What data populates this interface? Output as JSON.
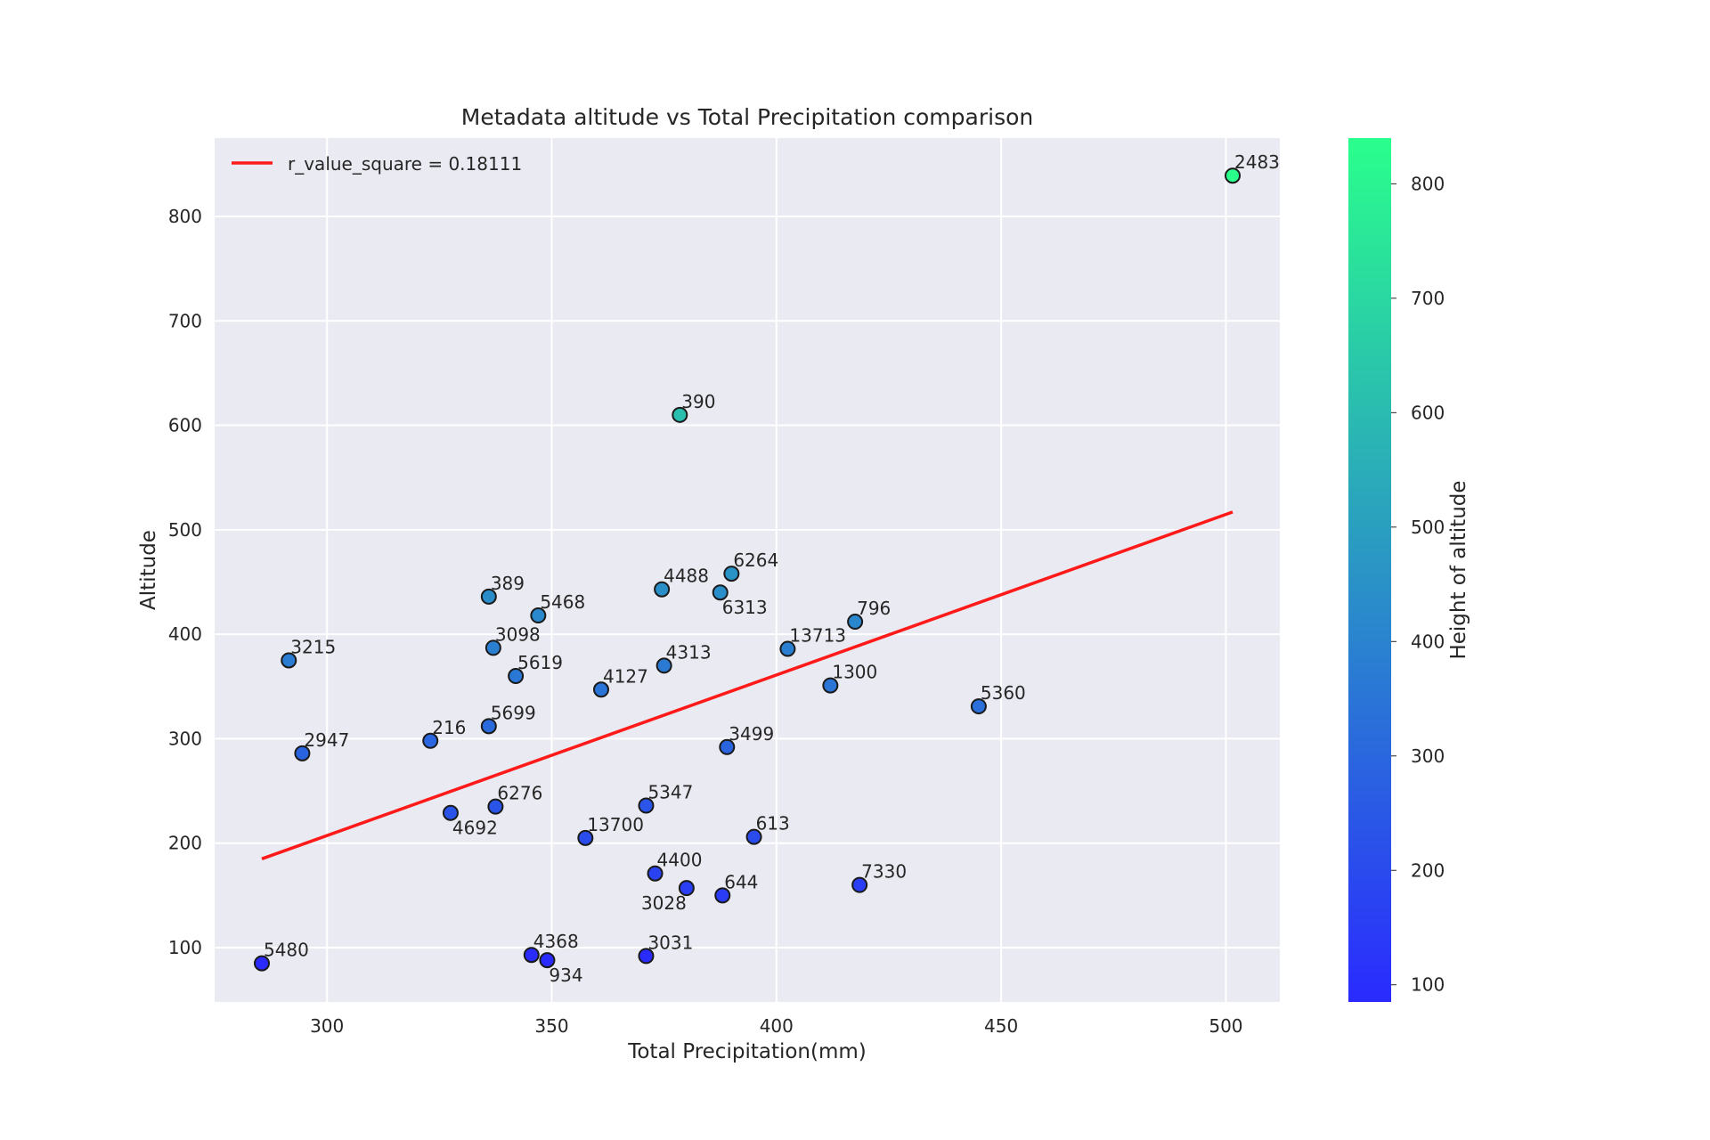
{
  "chart_data": {
    "type": "scatter",
    "title": "Metadata altitude vs Total Precipitation comparison",
    "xlabel": "Total Precipitation(mm)",
    "ylabel": "Altitude",
    "xlim": [
      275,
      512
    ],
    "ylim": [
      48,
      875
    ],
    "x_ticks": [
      300,
      350,
      400,
      450,
      500
    ],
    "y_ticks": [
      100,
      200,
      300,
      400,
      500,
      600,
      700,
      800
    ],
    "grid": true,
    "legend": {
      "placement": "top-left",
      "entries": [
        "r_value_square = 0.18111"
      ]
    },
    "regression": {
      "label": "r_value_square = 0.18111",
      "x": [
        285.5,
        501.5
      ],
      "y": [
        185,
        517
      ],
      "color": "#ff1a1a"
    },
    "colorbar": {
      "label": "Height of altitude",
      "min": 85,
      "max": 840,
      "ticks": [
        100,
        200,
        300,
        400,
        500,
        600,
        700,
        800
      ],
      "color_low": "#2a2aff",
      "color_high": "#2aff8c"
    },
    "points": [
      {
        "label": "2483",
        "x": 501.5,
        "y": 839
      },
      {
        "label": "390",
        "x": 378.5,
        "y": 610
      },
      {
        "label": "6264",
        "x": 390,
        "y": 458
      },
      {
        "label": "4488",
        "x": 374.5,
        "y": 443
      },
      {
        "label": "6313",
        "x": 387.5,
        "y": 440,
        "pos": "below"
      },
      {
        "label": "389",
        "x": 336,
        "y": 436
      },
      {
        "label": "5468",
        "x": 347,
        "y": 418
      },
      {
        "label": "796",
        "x": 417.5,
        "y": 412
      },
      {
        "label": "3098",
        "x": 337,
        "y": 387
      },
      {
        "label": "13713",
        "x": 402.5,
        "y": 386
      },
      {
        "label": "3215",
        "x": 291.5,
        "y": 375
      },
      {
        "label": "4313",
        "x": 375,
        "y": 370
      },
      {
        "label": "5619",
        "x": 342,
        "y": 360
      },
      {
        "label": "1300",
        "x": 412,
        "y": 351
      },
      {
        "label": "4127",
        "x": 361,
        "y": 347
      },
      {
        "label": "5360",
        "x": 445,
        "y": 331
      },
      {
        "label": "5699",
        "x": 336,
        "y": 312
      },
      {
        "label": "216",
        "x": 323,
        "y": 298
      },
      {
        "label": "3499",
        "x": 389,
        "y": 292
      },
      {
        "label": "2947",
        "x": 294.5,
        "y": 286
      },
      {
        "label": "5347",
        "x": 371,
        "y": 236
      },
      {
        "label": "6276",
        "x": 337.5,
        "y": 235
      },
      {
        "label": "4692",
        "x": 327.5,
        "y": 229,
        "pos": "below"
      },
      {
        "label": "613",
        "x": 395,
        "y": 206
      },
      {
        "label": "13700",
        "x": 357.5,
        "y": 205
      },
      {
        "label": "4400",
        "x": 373,
        "y": 171
      },
      {
        "label": "7330",
        "x": 418.5,
        "y": 160
      },
      {
        "label": "3028",
        "x": 380,
        "y": 157,
        "pos": "belowleft"
      },
      {
        "label": "644",
        "x": 388,
        "y": 150
      },
      {
        "label": "4368",
        "x": 345.5,
        "y": 93
      },
      {
        "label": "3031",
        "x": 371,
        "y": 92
      },
      {
        "label": "934",
        "x": 349,
        "y": 88,
        "pos": "below"
      },
      {
        "label": "5480",
        "x": 285.5,
        "y": 85
      }
    ]
  }
}
